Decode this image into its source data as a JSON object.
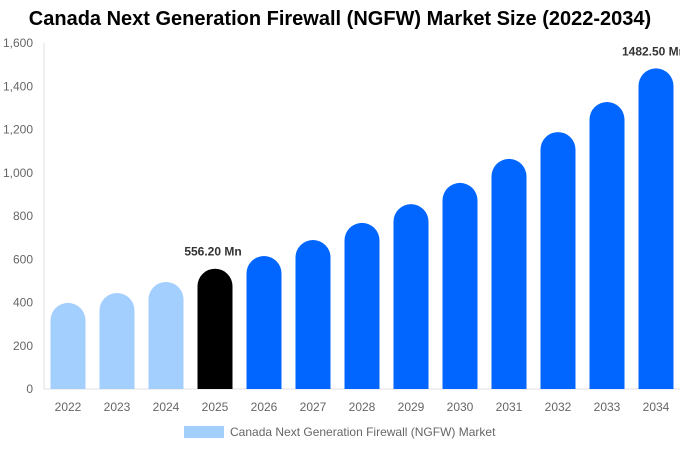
{
  "chart_data": {
    "type": "bar",
    "title": "Canada Next Generation Firewall (NGFW) Market Size (2022-2034)",
    "categories": [
      "2022",
      "2023",
      "2024",
      "2025",
      "2026",
      "2027",
      "2028",
      "2029",
      "2030",
      "2031",
      "2032",
      "2033",
      "2034"
    ],
    "series": [
      {
        "name": "Canada Next Generation Firewall (NGFW) Market",
        "values": [
          398,
          444,
          495,
          556.2,
          615,
          689,
          768,
          855,
          953,
          1064,
          1188,
          1327,
          1482.5
        ]
      }
    ],
    "data_labels": [
      {
        "category": "2025",
        "text": "556.20 Mn"
      },
      {
        "category": "2034",
        "text": "1482.50 Mn"
      }
    ],
    "ylim": [
      0,
      1600
    ],
    "yticks": [
      0,
      200,
      400,
      600,
      800,
      1000,
      1200,
      1400,
      1600
    ],
    "ytick_labels": [
      "0",
      "200",
      "400",
      "600",
      "800",
      "1,000",
      "1,200",
      "1,400",
      "1,600"
    ],
    "xlabel": "",
    "ylabel": "",
    "grid": false,
    "legend_position": "bottom",
    "colors": {
      "historical": "#a3cfff",
      "current": "#000000",
      "forecast": "#0066ff"
    },
    "color_groups": [
      "historical",
      "historical",
      "historical",
      "current",
      "forecast",
      "forecast",
      "forecast",
      "forecast",
      "forecast",
      "forecast",
      "forecast",
      "forecast",
      "forecast"
    ]
  }
}
